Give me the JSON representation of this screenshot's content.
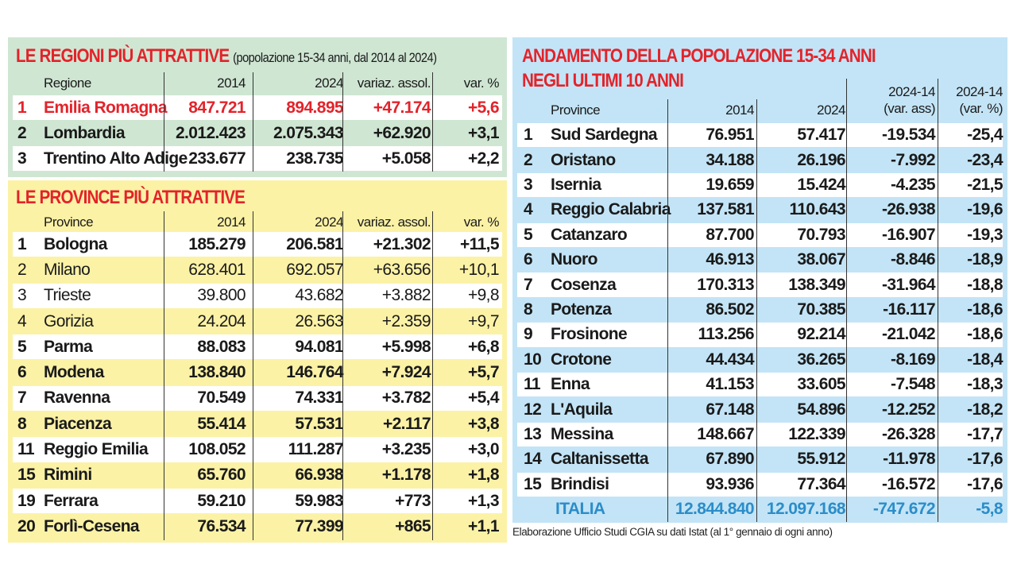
{
  "regioni": {
    "title": "LE REGIONI PIÙ ATTRATTIVE",
    "subtitle": "(popolazione 15-34 anni, dal 2014 al 2024)",
    "headers": [
      "",
      "Regione",
      "2014",
      "2024",
      "variaz. assol.",
      "var. %"
    ],
    "rows": [
      {
        "rank": "1",
        "name": "Emilia Romagna",
        "y2014": "847.721",
        "y2024": "894.895",
        "abs": "+47.174",
        "pct": "+5,6",
        "highlight": true
      },
      {
        "rank": "2",
        "name": "Lombardia",
        "y2014": "2.012.423",
        "y2024": "2.075.343",
        "abs": "+62.920",
        "pct": "+3,1"
      },
      {
        "rank": "3",
        "name": "Trentino Alto Adige",
        "y2014": "233.677",
        "y2024": "238.735",
        "abs": "+5.058",
        "pct": "+2,2"
      }
    ],
    "colors": {
      "background": "#cfe6d3",
      "highlight": "#e3232a"
    }
  },
  "province": {
    "title": "LE PROVINCE PIÙ ATTRATTIVE",
    "headers": [
      "",
      "Province",
      "2014",
      "2024",
      "variaz. assol.",
      "var. %"
    ],
    "rows": [
      {
        "rank": "1",
        "name": "Bologna",
        "y2014": "185.279",
        "y2024": "206.581",
        "abs": "+21.302",
        "pct": "+11,5",
        "bold": true
      },
      {
        "rank": "2",
        "name": "Milano",
        "y2014": "628.401",
        "y2024": "692.057",
        "abs": "+63.656",
        "pct": "+10,1"
      },
      {
        "rank": "3",
        "name": "Trieste",
        "y2014": "39.800",
        "y2024": "43.682",
        "abs": "+3.882",
        "pct": "+9,8"
      },
      {
        "rank": "4",
        "name": "Gorizia",
        "y2014": "24.204",
        "y2024": "26.563",
        "abs": "+2.359",
        "pct": "+9,7"
      },
      {
        "rank": "5",
        "name": "Parma",
        "y2014": "88.083",
        "y2024": "94.081",
        "abs": "+5.998",
        "pct": "+6,8",
        "bold": true
      },
      {
        "rank": "6",
        "name": "Modena",
        "y2014": "138.840",
        "y2024": "146.764",
        "abs": "+7.924",
        "pct": "+5,7",
        "bold": true
      },
      {
        "rank": "7",
        "name": "Ravenna",
        "y2014": "70.549",
        "y2024": "74.331",
        "abs": "+3.782",
        "pct": "+5,4",
        "bold": true
      },
      {
        "rank": "8",
        "name": "Piacenza",
        "y2014": "55.414",
        "y2024": "57.531",
        "abs": "+2.117",
        "pct": "+3,8",
        "bold": true
      },
      {
        "rank": "11",
        "name": "Reggio Emilia",
        "y2014": "108.052",
        "y2024": "111.287",
        "abs": "+3.235",
        "pct": "+3,0",
        "bold": true
      },
      {
        "rank": "15",
        "name": "Rimini",
        "y2014": "65.760",
        "y2024": "66.938",
        "abs": "+1.178",
        "pct": "+1,8",
        "bold": true
      },
      {
        "rank": "19",
        "name": "Ferrara",
        "y2014": "59.210",
        "y2024": "59.983",
        "abs": "+773",
        "pct": "+1,3",
        "bold": true
      },
      {
        "rank": "20",
        "name": "Forlì-Cesena",
        "y2014": "76.534",
        "y2024": "77.399",
        "abs": "+865",
        "pct": "+1,1",
        "bold": true
      }
    ],
    "colors": {
      "background": "#fbf2a6"
    }
  },
  "andamento": {
    "title_line1": "ANDAMENTO DELLA POPOLAZIONE 15-34 ANNI",
    "title_line2": "NEGLI ULTIMI 10 ANNI",
    "headers": [
      "",
      "Province",
      "2014",
      "2024",
      "2024-14",
      "(var. ass)",
      "2024-14",
      "(var. %)"
    ],
    "rows": [
      {
        "rank": "1",
        "name": "Sud Sardegna",
        "y2014": "76.951",
        "y2024": "57.417",
        "abs": "-19.534",
        "pct": "-25,4"
      },
      {
        "rank": "2",
        "name": "Oristano",
        "y2014": "34.188",
        "y2024": "26.196",
        "abs": "-7.992",
        "pct": "-23,4"
      },
      {
        "rank": "3",
        "name": "Isernia",
        "y2014": "19.659",
        "y2024": "15.424",
        "abs": "-4.235",
        "pct": "-21,5"
      },
      {
        "rank": "4",
        "name": "Reggio Calabria",
        "y2014": "137.581",
        "y2024": "110.643",
        "abs": "-26.938",
        "pct": "-19,6"
      },
      {
        "rank": "5",
        "name": "Catanzaro",
        "y2014": "87.700",
        "y2024": "70.793",
        "abs": "-16.907",
        "pct": "-19,3"
      },
      {
        "rank": "6",
        "name": "Nuoro",
        "y2014": "46.913",
        "y2024": "38.067",
        "abs": "-8.846",
        "pct": "-18,9"
      },
      {
        "rank": "7",
        "name": "Cosenza",
        "y2014": "170.313",
        "y2024": "138.349",
        "abs": "-31.964",
        "pct": "-18,8"
      },
      {
        "rank": "8",
        "name": "Potenza",
        "y2014": "86.502",
        "y2024": "70.385",
        "abs": "-16.117",
        "pct": "-18,6"
      },
      {
        "rank": "9",
        "name": "Frosinone",
        "y2014": "113.256",
        "y2024": "92.214",
        "abs": "-21.042",
        "pct": "-18,6"
      },
      {
        "rank": "10",
        "name": "Crotone",
        "y2014": "44.434",
        "y2024": "36.265",
        "abs": "-8.169",
        "pct": "-18,4"
      },
      {
        "rank": "11",
        "name": "Enna",
        "y2014": "41.153",
        "y2024": "33.605",
        "abs": "-7.548",
        "pct": "-18,3"
      },
      {
        "rank": "12",
        "name": "L'Aquila",
        "y2014": "67.148",
        "y2024": "54.896",
        "abs": "-12.252",
        "pct": "-18,2"
      },
      {
        "rank": "13",
        "name": "Messina",
        "y2014": "148.667",
        "y2024": "122.339",
        "abs": "-26.328",
        "pct": "-17,7"
      },
      {
        "rank": "14",
        "name": "Caltanissetta",
        "y2014": "67.890",
        "y2024": "55.912",
        "abs": "-11.978",
        "pct": "-17,6"
      },
      {
        "rank": "15",
        "name": "Brindisi",
        "y2014": "93.936",
        "y2024": "77.364",
        "abs": "-16.572",
        "pct": "-17,6"
      }
    ],
    "total": {
      "name": "ITALIA",
      "y2014": "12.844.840",
      "y2024": "12.097.168",
      "abs": "-747.672",
      "pct": "-5,8"
    },
    "colors": {
      "background": "#c3e4f6",
      "total": "#2b8dc9"
    }
  },
  "footer": "Elaborazione Ufficio Studi CGIA su dati Istat (al 1° gennaio di ogni anno)"
}
